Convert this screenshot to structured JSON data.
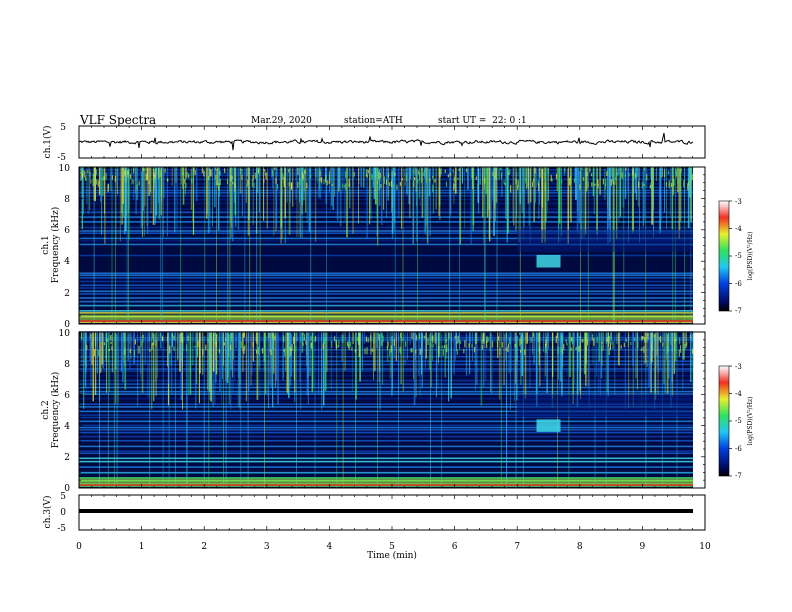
{
  "header": {
    "title": "VLF Spectra",
    "date": "Mar.29, 2020",
    "station": "station=ATH",
    "start": "start UT =  22: 0 :1"
  },
  "chart_data": [
    {
      "type": "line",
      "name": "ch1-waveform",
      "ylabel": "ch.1(V)",
      "ylim": [
        -5,
        5
      ],
      "yticks": [
        "5",
        "-5"
      ],
      "xlim": [
        0,
        10
      ]
    },
    {
      "type": "heatmap",
      "name": "ch1-spectrogram",
      "ylabel": "ch.1\nFrequency (kHz)",
      "ylabel_line1": "ch.1",
      "ylabel_line2": "Frequency (kHz)",
      "ylim": [
        0,
        10
      ],
      "yticks": [
        "0",
        "2",
        "4",
        "6",
        "8",
        "10"
      ],
      "xlim": [
        0,
        9.8
      ],
      "colorbar": {
        "label": "log(PSD)(V²/Hz)",
        "range": [
          -7,
          -3
        ],
        "ticks": [
          "-3",
          "-4",
          "-5",
          "-6",
          "-7"
        ]
      },
      "features": {
        "burst_time_min": 7.5,
        "burst_freq_khz": 4.0
      }
    },
    {
      "type": "heatmap",
      "name": "ch2-spectrogram",
      "ylabel_line1": "ch.2",
      "ylabel_line2": "Frequency (kHz)",
      "ylim": [
        0,
        10
      ],
      "yticks": [
        "0",
        "2",
        "4",
        "6",
        "8",
        "10"
      ],
      "xlim": [
        0,
        9.8
      ],
      "colorbar": {
        "label": "log(PSD)(V²/Hz)",
        "range": [
          -7,
          -3
        ],
        "ticks": [
          "-3",
          "-4",
          "-5",
          "-6",
          "-7"
        ]
      },
      "features": {
        "burst_time_min": 7.5,
        "burst_freq_khz": 4.0
      }
    },
    {
      "type": "line",
      "name": "ch3-waveform",
      "ylabel": "ch.3(V)",
      "ylim": [
        -5,
        5
      ],
      "yticks": [
        "5",
        "0",
        "-5"
      ],
      "xlim": [
        0,
        10
      ]
    }
  ],
  "xaxis": {
    "label": "Time (min)",
    "ticks": [
      "0",
      "1",
      "2",
      "3",
      "4",
      "5",
      "6",
      "7",
      "8",
      "9",
      "10"
    ],
    "range": [
      0,
      10
    ]
  },
  "colors": {
    "deep_blue": "#000a40",
    "blue": "#0b3aa8",
    "cyan": "#3fd8e8",
    "green": "#40e070",
    "yellow": "#e8e840",
    "red": "#e03020"
  }
}
